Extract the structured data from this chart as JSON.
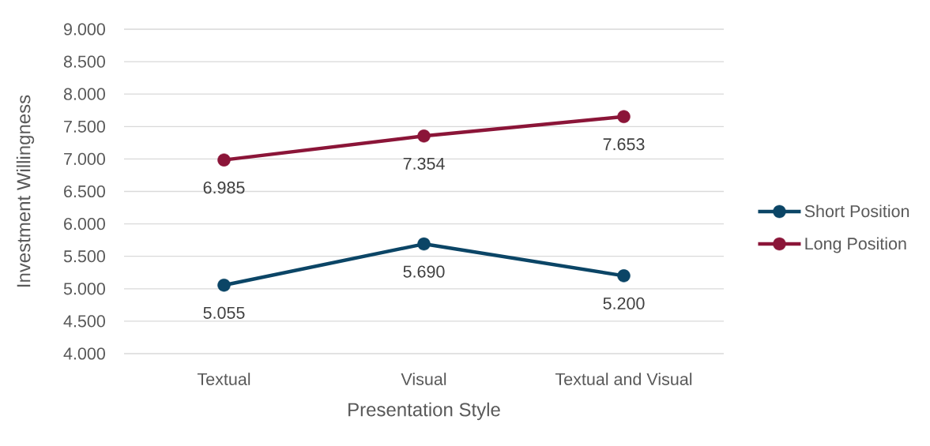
{
  "chart_data": {
    "type": "line",
    "xlabel": "Presentation Style",
    "ylabel": "Investment Willingness",
    "categories": [
      "Textual",
      "Visual",
      "Textual and Visual"
    ],
    "series": [
      {
        "name": "Short Position",
        "color": "#0b4566",
        "values": [
          5.055,
          5.69,
          5.2
        ],
        "value_labels": [
          "5.055",
          "5.690",
          "5.200"
        ]
      },
      {
        "name": "Long Position",
        "color": "#8b1538",
        "values": [
          6.985,
          7.354,
          7.653
        ],
        "value_labels": [
          "6.985",
          "7.354",
          "7.653"
        ]
      }
    ],
    "ylim": [
      4,
      9
    ],
    "yticks": [
      {
        "value": 4,
        "label": "4.000"
      },
      {
        "value": 4.5,
        "label": "4.500"
      },
      {
        "value": 5,
        "label": "5.000"
      },
      {
        "value": 5.5,
        "label": "5.500"
      },
      {
        "value": 6,
        "label": "6.000"
      },
      {
        "value": 6.5,
        "label": "6.500"
      },
      {
        "value": 7,
        "label": "7.000"
      },
      {
        "value": 7.5,
        "label": "7.500"
      },
      {
        "value": 8,
        "label": "8.000"
      },
      {
        "value": 8.5,
        "label": "8.500"
      },
      {
        "value": 9,
        "label": "9.000"
      }
    ],
    "grid": "y",
    "legend": "right",
    "marker": "circle",
    "line_style": "solid"
  }
}
